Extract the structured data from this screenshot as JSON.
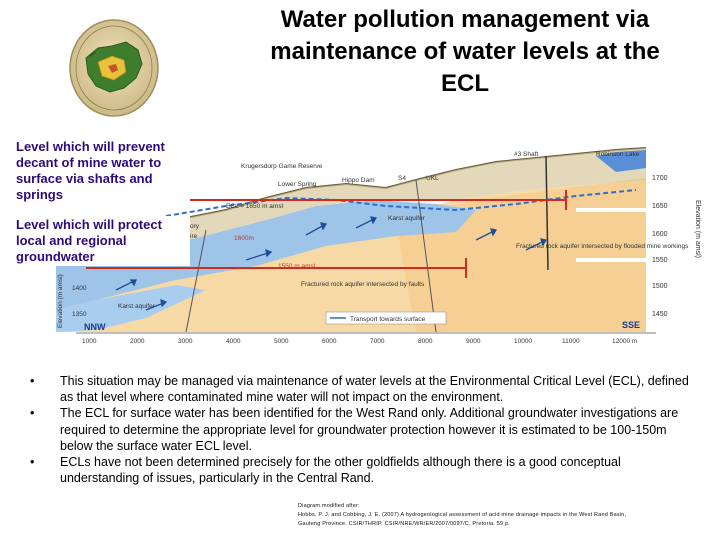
{
  "title": {
    "lines": [
      "Water pollution management via",
      "maintenance of water levels at the",
      "ECL"
    ]
  },
  "callouts": {
    "decant": "Level which will prevent decant of mine water to surface via shafts and springs",
    "groundwater": "Level which will protect local and regional groundwater"
  },
  "diagram": {
    "y_axis_right": "Elevation (m amsl)",
    "y_axis_left": "Elevation (m amsl)",
    "y_ticks": [
      "1700",
      "1650",
      "1600",
      "1550",
      "1500",
      "1450"
    ],
    "x_ticks": [
      "1000",
      "2000",
      "3000",
      "4000",
      "5000",
      "6000",
      "7000",
      "8000",
      "9000",
      "10000",
      "11000",
      "12000 m"
    ],
    "left_ticks": [
      "1400",
      "1350"
    ],
    "orient_left": "NNW",
    "orient_right": "SSE",
    "labels": {
      "shaft": "#3 Shaft",
      "lake": "Robinson Lake",
      "krugersdorp": "Krugersdorp Game Reserve",
      "lower_spring": "Lower Spring",
      "hippo_dam": "Hippo Dam",
      "ecl": "ECL = 1650 m amsl",
      "s4": "S4",
      "ukl": "UKL",
      "karst_upper": "Karst aquifer",
      "fractured_flooded": "Fractured rock aquifer intersected by flooded mine workings",
      "level_1600": "1600m",
      "level_1550": "1550 m amsl",
      "fractured_faults": "Fractured rock aquifer intersected by faults",
      "karst_lower": "Karst aquifer",
      "legend": "Transport towards surface",
      "frag1": "ory",
      "frag2": "ire"
    }
  },
  "bullets": [
    "This situation may be managed via maintenance of water levels at the Environmental Critical Level (ECL), defined as that level where contaminated mine water will not impact on the environment.",
    "The ECL for surface water has been identified for the West Rand only. Additional groundwater investigations are required to determine the appropriate level for groundwater protection however it is estimated to be 100-150m below the surface water ECL level.",
    "ECLs have not been determined precisely for the other goldfields although there is a good conceptual understanding of issues, particularly in the Central Rand."
  ],
  "bullet_char": "•",
  "citation": [
    "Diagram modified after:",
    "Hobbs, P. J. and Cobbing, J. E. (2007) A hydrogeological assessment of acid mine drainage impacts in the West Rand Basin,",
    "Gauteng Province. CSIR/THRIP. CSIR/NRE/WR/ER/2007/0097/C. Pretoria. 59 p."
  ],
  "colors": {
    "callout_text": "#2d0a7a",
    "marker_red": "#d42a1e",
    "dolomite": "#9ec4e8",
    "rock": "#f7d9a6",
    "water": "#2d6fd1",
    "ground": "#b8a47a"
  }
}
